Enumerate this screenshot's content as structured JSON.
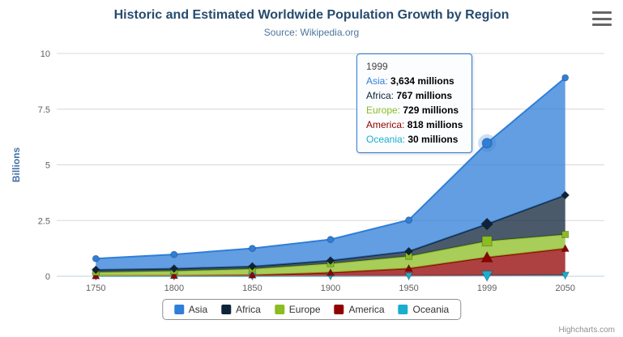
{
  "chart": {
    "title": "Historic and Estimated Worldwide Population Growth by Region",
    "subtitle": "Source: Wikipedia.org",
    "credits": "Highcharts.com"
  },
  "chart_data": {
    "type": "area",
    "stacking": "normal",
    "title": "Historic and Estimated Worldwide Population Growth by Region",
    "subtitle": "Source: Wikipedia.org",
    "categories": [
      "1750",
      "1800",
      "1850",
      "1900",
      "1950",
      "1999",
      "2050"
    ],
    "unit": "millions",
    "series": [
      {
        "name": "Asia",
        "color": "#2f7ed8",
        "marker": "circle",
        "values": [
          502,
          635,
          809,
          947,
          1402,
          3634,
          5268
        ]
      },
      {
        "name": "Africa",
        "color": "#0d233a",
        "marker": "diamond",
        "values": [
          106,
          107,
          111,
          133,
          221,
          767,
          1766
        ]
      },
      {
        "name": "Europe",
        "color": "#8bbc21",
        "marker": "square",
        "values": [
          163,
          203,
          276,
          408,
          547,
          729,
          628
        ]
      },
      {
        "name": "America",
        "color": "#910000",
        "marker": "triangle",
        "values": [
          18,
          31,
          54,
          156,
          339,
          818,
          1201
        ]
      },
      {
        "name": "Oceania",
        "color": "#1aadce",
        "marker": "triangle-down",
        "values": [
          2,
          2,
          2,
          6,
          13,
          30,
          46
        ]
      }
    ],
    "stack_order_bottom_to_top": [
      "Oceania",
      "America",
      "Europe",
      "Africa",
      "Asia"
    ],
    "xlabel": "",
    "ylabel": "Billions",
    "yticks": [
      0,
      2.5,
      5,
      7.5,
      10
    ],
    "ylim": [
      0,
      10
    ],
    "grid": true,
    "legend_position": "bottom"
  },
  "tooltip": {
    "header": "1999",
    "hover_index": 5,
    "rows": [
      {
        "name": "Asia",
        "color": "#2f7ed8",
        "value": "3,634 millions"
      },
      {
        "name": "Africa",
        "color": "#0d233a",
        "value": "767 millions"
      },
      {
        "name": "Europe",
        "color": "#8bbc21",
        "value": "729 millions"
      },
      {
        "name": "America",
        "color": "#910000",
        "value": "818 millions"
      },
      {
        "name": "Oceania",
        "color": "#1aadce",
        "value": "30 millions"
      }
    ]
  },
  "legend": {
    "items": [
      {
        "label": "Asia",
        "color": "#2f7ed8"
      },
      {
        "label": "Africa",
        "color": "#0d233a"
      },
      {
        "label": "Europe",
        "color": "#8bbc21"
      },
      {
        "label": "America",
        "color": "#910000"
      },
      {
        "label": "Oceania",
        "color": "#1aadce"
      }
    ]
  },
  "colors": {
    "title": "#274b6d",
    "subtitle": "#4d759e",
    "axis_label": "#606060",
    "axis_title": "#4572a7",
    "gridline": "#d8d8d8",
    "axis_line": "#c0d0e0",
    "credits": "#909090"
  },
  "icons": {
    "context_menu": "hamburger-icon"
  }
}
